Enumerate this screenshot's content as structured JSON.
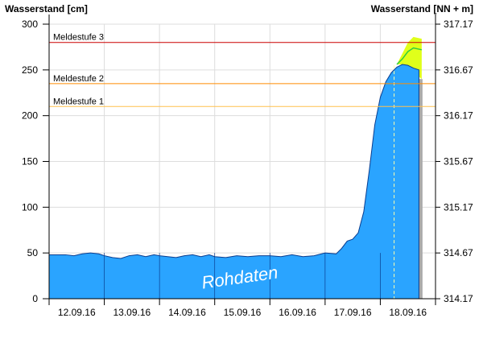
{
  "chart_data": {
    "type": "area",
    "ylabel_left": "Wasserstand [cm]",
    "ylabel_right": "Wasserstand [NN + m]",
    "y_left_ticks": [
      "0",
      "50",
      "100",
      "150",
      "200",
      "250",
      "300"
    ],
    "y_right_ticks": [
      "314.17",
      "314.67",
      "315.17",
      "315.67",
      "316.17",
      "316.67",
      "317.17"
    ],
    "ylim": [
      0,
      300
    ],
    "xlim_days": [
      0,
      7
    ],
    "x_tick_labels": [
      "12.09.16",
      "13.09.16",
      "14.09.16",
      "15.09.16",
      "16.09.16",
      "17.09.16",
      "18.09.16"
    ],
    "grid": true,
    "watermark": "Rohdaten",
    "thresholds": [
      {
        "label": "Meldestufe 3",
        "value": 280,
        "color": "#cc0000"
      },
      {
        "label": "Meldestufe 2",
        "value": 235,
        "color": "#ff8c00"
      },
      {
        "label": "Meldestufe 1",
        "value": 210,
        "color": "#ffc04d"
      }
    ],
    "series": [
      {
        "type": "area",
        "color": "#2aa4ff",
        "points": [
          [
            0.0,
            48
          ],
          [
            0.3,
            48
          ],
          [
            0.45,
            47
          ],
          [
            0.6,
            49
          ],
          [
            0.75,
            50
          ],
          [
            0.9,
            49
          ],
          [
            1.0,
            47
          ],
          [
            1.15,
            45
          ],
          [
            1.3,
            44
          ],
          [
            1.45,
            47
          ],
          [
            1.6,
            48
          ],
          [
            1.75,
            46
          ],
          [
            1.9,
            48
          ],
          [
            2.0,
            47
          ],
          [
            2.15,
            46
          ],
          [
            2.3,
            45
          ],
          [
            2.45,
            47
          ],
          [
            2.6,
            48
          ],
          [
            2.75,
            46
          ],
          [
            2.9,
            48
          ],
          [
            3.0,
            46
          ],
          [
            3.2,
            45
          ],
          [
            3.4,
            47
          ],
          [
            3.6,
            46
          ],
          [
            3.8,
            47
          ],
          [
            4.0,
            47
          ],
          [
            4.2,
            46
          ],
          [
            4.4,
            48
          ],
          [
            4.6,
            46
          ],
          [
            4.8,
            47
          ],
          [
            5.0,
            50
          ],
          [
            5.2,
            49
          ],
          [
            5.3,
            55
          ],
          [
            5.4,
            63
          ],
          [
            5.5,
            65
          ],
          [
            5.6,
            72
          ],
          [
            5.7,
            95
          ],
          [
            5.8,
            140
          ],
          [
            5.9,
            190
          ],
          [
            6.0,
            220
          ],
          [
            6.1,
            237
          ],
          [
            6.2,
            247
          ],
          [
            6.3,
            253
          ],
          [
            6.4,
            256
          ],
          [
            6.5,
            255
          ],
          [
            6.6,
            252
          ],
          [
            6.7,
            250
          ]
        ]
      },
      {
        "type": "forecast-band",
        "color": "#e0ff1a",
        "upper": [
          [
            6.3,
            256
          ],
          [
            6.4,
            268
          ],
          [
            6.5,
            280
          ],
          [
            6.6,
            286
          ],
          [
            6.75,
            284
          ]
        ],
        "lower": [
          [
            6.3,
            256
          ],
          [
            6.4,
            256
          ],
          [
            6.5,
            252
          ],
          [
            6.6,
            248
          ],
          [
            6.75,
            240
          ]
        ]
      },
      {
        "type": "forecast-line",
        "color": "#2ecc40",
        "points": [
          [
            6.3,
            256
          ],
          [
            6.4,
            262
          ],
          [
            6.5,
            270
          ],
          [
            6.6,
            274
          ],
          [
            6.75,
            272
          ]
        ]
      }
    ],
    "forecast_start_day": 6.25
  }
}
